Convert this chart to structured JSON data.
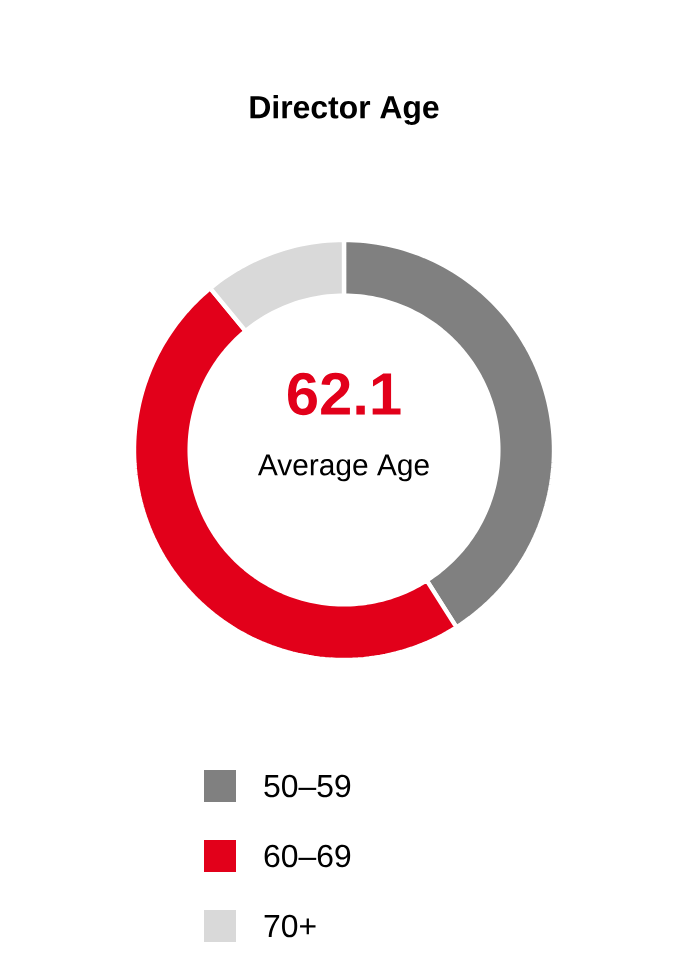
{
  "chart_data": {
    "type": "donut",
    "title": "Director Age",
    "categories": [
      "50–59",
      "60–69",
      "70+"
    ],
    "values": [
      41,
      48,
      11
    ],
    "colors": [
      "#808080",
      "#e2001a",
      "#d9d9d9"
    ],
    "annotations": [
      "62.1",
      "Average Age"
    ],
    "legend": "bottom"
  }
}
